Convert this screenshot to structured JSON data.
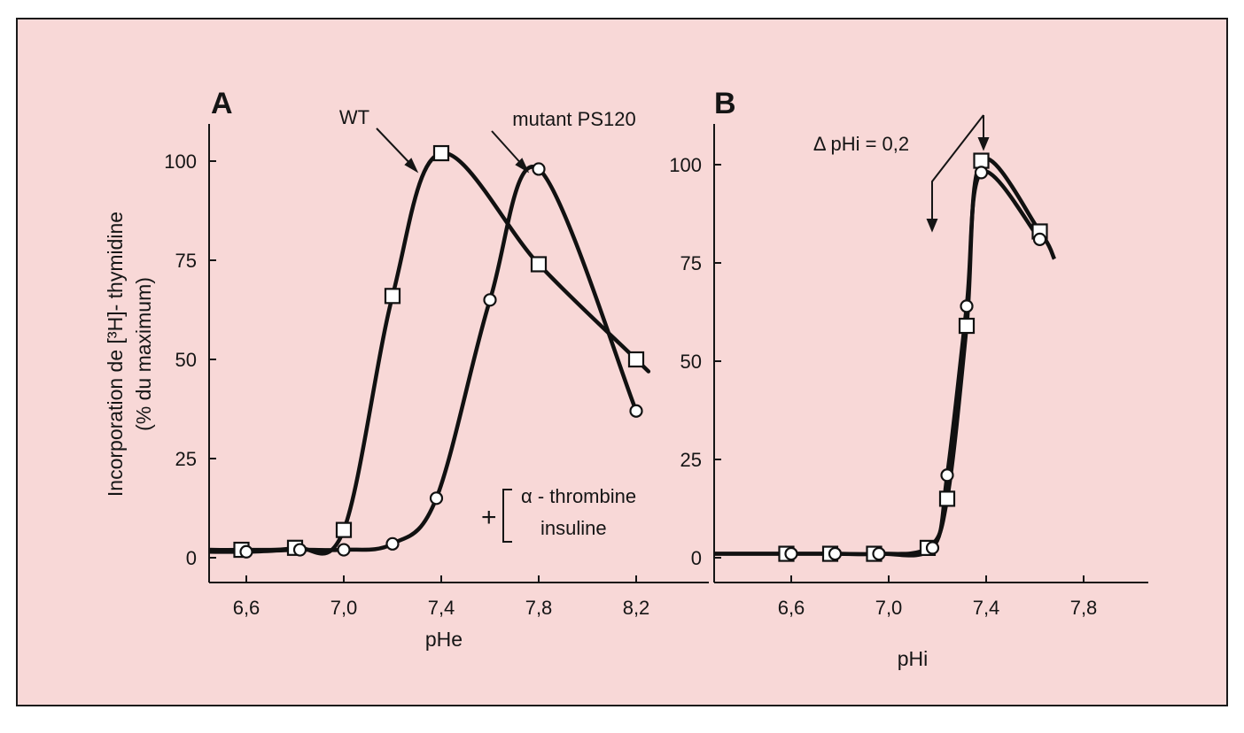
{
  "chart_data": [
    {
      "type": "line",
      "panel_label": "A",
      "xlabel": "pHe",
      "ylabel": [
        "Incorporation de [³H]- thymidine",
        "(% du maximum)"
      ],
      "xlim": [
        6.45,
        8.3
      ],
      "ylim": [
        -5,
        110
      ],
      "xticks": [
        "6,6",
        "7,0",
        "7,4",
        "7,8",
        "8,2"
      ],
      "xtick_values": [
        6.6,
        7.0,
        7.4,
        7.8,
        8.2
      ],
      "yticks": [
        "0",
        "25",
        "50",
        "75",
        "100"
      ],
      "ytick_values": [
        0,
        25,
        50,
        75,
        100
      ],
      "series": [
        {
          "name": "WT",
          "marker": "square",
          "x": [
            6.58,
            6.8,
            7.0,
            7.2,
            7.4,
            7.8,
            8.2
          ],
          "y": [
            2,
            2.5,
            7,
            66,
            102,
            74,
            50
          ],
          "curve_end": [
            8.25,
            47
          ]
        },
        {
          "name": "mutant PS120",
          "marker": "circle",
          "x": [
            6.6,
            6.82,
            7.0,
            7.2,
            7.38,
            7.6,
            7.8,
            8.2
          ],
          "y": [
            1.5,
            2,
            2,
            3.5,
            15,
            65,
            98,
            37
          ]
        }
      ],
      "annotations": {
        "plus": "+",
        "treatment_1": "α - thrombine",
        "treatment_2": "insuline"
      }
    },
    {
      "type": "line",
      "panel_label": "B",
      "xlabel": "pHi",
      "xlim": [
        6.3,
        8.0
      ],
      "ylim": [
        -5,
        110
      ],
      "xticks": [
        "6,6",
        "7,0",
        "7,4",
        "7,8"
      ],
      "xtick_values": [
        6.6,
        7.0,
        7.4,
        7.8
      ],
      "yticks": [
        "0",
        "25",
        "50",
        "75",
        "100"
      ],
      "ytick_values": [
        0,
        25,
        50,
        75,
        100
      ],
      "series": [
        {
          "name": "squares",
          "marker": "square",
          "x": [
            6.58,
            6.76,
            6.94,
            7.16,
            7.24,
            7.32,
            7.38,
            7.62
          ],
          "y": [
            1,
            1,
            1,
            2.5,
            15,
            59,
            101,
            83
          ],
          "curve_end": [
            7.68,
            76
          ]
        },
        {
          "name": "circles",
          "marker": "circle",
          "x": [
            6.6,
            6.78,
            6.96,
            7.18,
            7.24,
            7.32,
            7.38,
            7.62
          ],
          "y": [
            1,
            1,
            1,
            2.5,
            21,
            64,
            98,
            81
          ]
        }
      ],
      "annotations": {
        "delta": "Δ pHi = 0,2"
      }
    }
  ]
}
